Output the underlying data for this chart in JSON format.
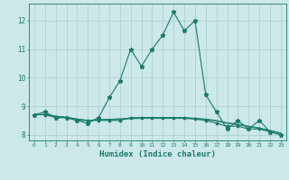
{
  "xlabel": "Humidex (Indice chaleur)",
  "bg_color": "#cce8e8",
  "line_color": "#1a7a6e",
  "grid_color": "#aacccc",
  "text_color": "#1a7a6e",
  "xlim": [
    -0.5,
    23.5
  ],
  "ylim": [
    7.8,
    12.6
  ],
  "yticks": [
    8,
    9,
    10,
    11,
    12
  ],
  "xticks": [
    0,
    1,
    2,
    3,
    4,
    5,
    6,
    7,
    8,
    9,
    10,
    11,
    12,
    13,
    14,
    15,
    16,
    17,
    18,
    19,
    20,
    21,
    22,
    23
  ],
  "line1_x": [
    0,
    1,
    2,
    3,
    4,
    5,
    6,
    7,
    8,
    9,
    10,
    11,
    12,
    13,
    14,
    15,
    16,
    17,
    18,
    19,
    20,
    21,
    22,
    23
  ],
  "line1_y": [
    8.7,
    8.8,
    8.6,
    8.6,
    8.5,
    8.4,
    8.6,
    9.3,
    9.9,
    11.0,
    10.4,
    11.0,
    11.5,
    12.3,
    11.65,
    12.0,
    9.4,
    8.8,
    8.2,
    8.5,
    8.2,
    8.5,
    8.1,
    8.0
  ],
  "line2_x": [
    0,
    1,
    2,
    3,
    4,
    5,
    6,
    7,
    8,
    9,
    10,
    11,
    12,
    13,
    14,
    15,
    16,
    17,
    18,
    19,
    20,
    21,
    22,
    23
  ],
  "line2_y": [
    8.7,
    8.7,
    8.6,
    8.6,
    8.5,
    8.5,
    8.5,
    8.5,
    8.5,
    8.6,
    8.6,
    8.6,
    8.6,
    8.6,
    8.6,
    8.55,
    8.5,
    8.4,
    8.3,
    8.3,
    8.2,
    8.2,
    8.1,
    8.0
  ],
  "line3_x": [
    0,
    1,
    2,
    3,
    4,
    5,
    6,
    7,
    8,
    9,
    10,
    11,
    12,
    13,
    14,
    15,
    16,
    17,
    18,
    19,
    20,
    21,
    22,
    23
  ],
  "line3_y": [
    8.7,
    8.7,
    8.65,
    8.6,
    8.55,
    8.5,
    8.52,
    8.53,
    8.54,
    8.56,
    8.57,
    8.57,
    8.57,
    8.57,
    8.57,
    8.55,
    8.52,
    8.48,
    8.4,
    8.35,
    8.28,
    8.22,
    8.14,
    8.05
  ],
  "line4_x": [
    0,
    1,
    2,
    3,
    4,
    5,
    6,
    7,
    8,
    9,
    10,
    11,
    12,
    13,
    14,
    15,
    16,
    17,
    18,
    19,
    20,
    21,
    22,
    23
  ],
  "line4_y": [
    8.7,
    8.72,
    8.65,
    8.62,
    8.55,
    8.5,
    8.53,
    8.54,
    8.56,
    8.58,
    8.6,
    8.6,
    8.6,
    8.6,
    8.6,
    8.58,
    8.55,
    8.5,
    8.42,
    8.37,
    8.3,
    8.24,
    8.15,
    8.06
  ]
}
